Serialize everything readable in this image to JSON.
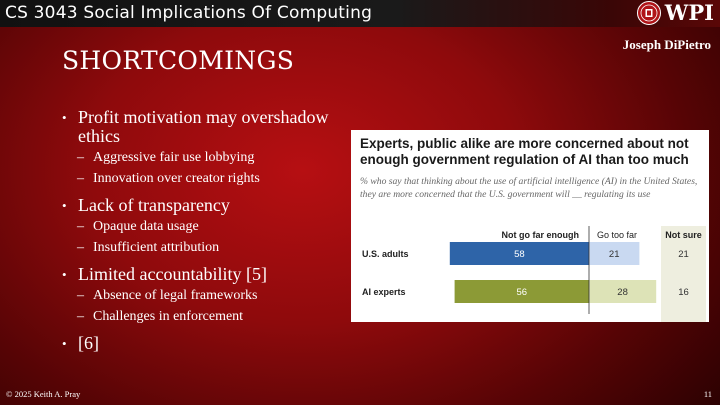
{
  "header": {
    "course_title": "CS 3043 Social Implications Of Computing",
    "logo_text": "WPI",
    "author": "Joseph DiPietro"
  },
  "slide": {
    "title": "SHORTCOMINGS",
    "bullets": [
      {
        "text": "Profit motivation may overshadow ethics",
        "sub": [
          "Aggressive fair use lobbying",
          "Innovation over creator rights"
        ]
      },
      {
        "text": "Lack of transparency",
        "sub": [
          "Opaque data usage",
          "Insufficient attribution"
        ]
      },
      {
        "text": "Limited accountability [5]",
        "sub": [
          "Absence of legal frameworks",
          "Challenges in enforcement"
        ]
      },
      {
        "text": "[6]",
        "sub": []
      }
    ]
  },
  "footer": {
    "copyright": "© 2025 Keith A. Pray",
    "page_number": "11"
  },
  "chart_data": {
    "type": "bar",
    "title": "Experts, public alike are more concerned about not enough government regulation of AI than too much",
    "subtitle": "% who say that thinking about the use of artificial intelligence (AI) in the United States, they are more concerned that the U.S. government will __ regulating its use",
    "categories": [
      "U.S. adults",
      "AI experts"
    ],
    "series": [
      {
        "name": "Not go far enough",
        "values": [
          58,
          56
        ],
        "color": "#2e64a8",
        "label_color": "#ffffff"
      },
      {
        "name": "Go too far",
        "values": [
          21,
          28
        ],
        "color": "#c9d9f1",
        "label_color": "#333333"
      }
    ],
    "not_sure": {
      "name": "Not sure",
      "values": [
        21,
        16
      ],
      "color": "#eeeedf"
    },
    "ai_experts_colors": {
      "not_go_far_enough": "#8c9a36",
      "go_too_far": "#dde3b7"
    }
  },
  "colors": {
    "background": "#9a0b0e",
    "header_bar": "#141414",
    "text": "#ffffff"
  }
}
